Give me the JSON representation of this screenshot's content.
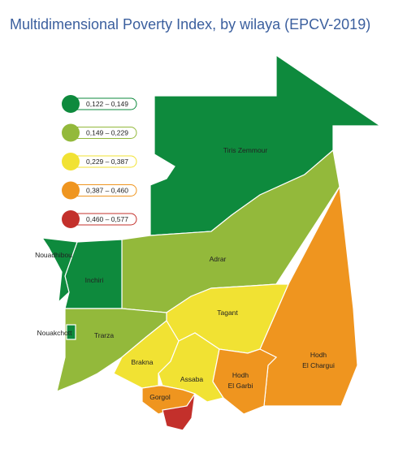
{
  "title": "Multidimensional Poverty Index, by wilaya (EPCV-2019)",
  "legend": [
    {
      "label": "0,122 – 0,149",
      "color": "#0e8a3d"
    },
    {
      "label": "0,149 – 0,229",
      "color": "#93b93b"
    },
    {
      "label": "0,229 – 0,387",
      "color": "#f1e233"
    },
    {
      "label": "0,387 – 0,460",
      "color": "#ef951f"
    },
    {
      "label": "0,460 – 0,577",
      "color": "#c3302b"
    }
  ],
  "regions": [
    {
      "name": [
        "Tiris Zemmour"
      ],
      "class": 0
    },
    {
      "name": [
        "Adrar"
      ],
      "class": 1
    },
    {
      "name": [
        "Hodh",
        "El Chargui"
      ],
      "class": 3
    },
    {
      "name": [
        "Tagant"
      ],
      "class": 2
    },
    {
      "name": [
        "Inchiri"
      ],
      "class": 0
    },
    {
      "name": [
        "Nouadhibou"
      ],
      "class": 0
    },
    {
      "name": [
        "Trarza"
      ],
      "class": 1
    },
    {
      "name": [
        "Nouakchott"
      ],
      "class": 0
    },
    {
      "name": [
        "Brakna"
      ],
      "class": 2
    },
    {
      "name": [
        "Assaba"
      ],
      "class": 2
    },
    {
      "name": [
        "Hodh",
        "El Garbi"
      ],
      "class": 3
    },
    {
      "name": [
        "Gorgol"
      ],
      "class": 3
    },
    {
      "class": 4
    }
  ]
}
